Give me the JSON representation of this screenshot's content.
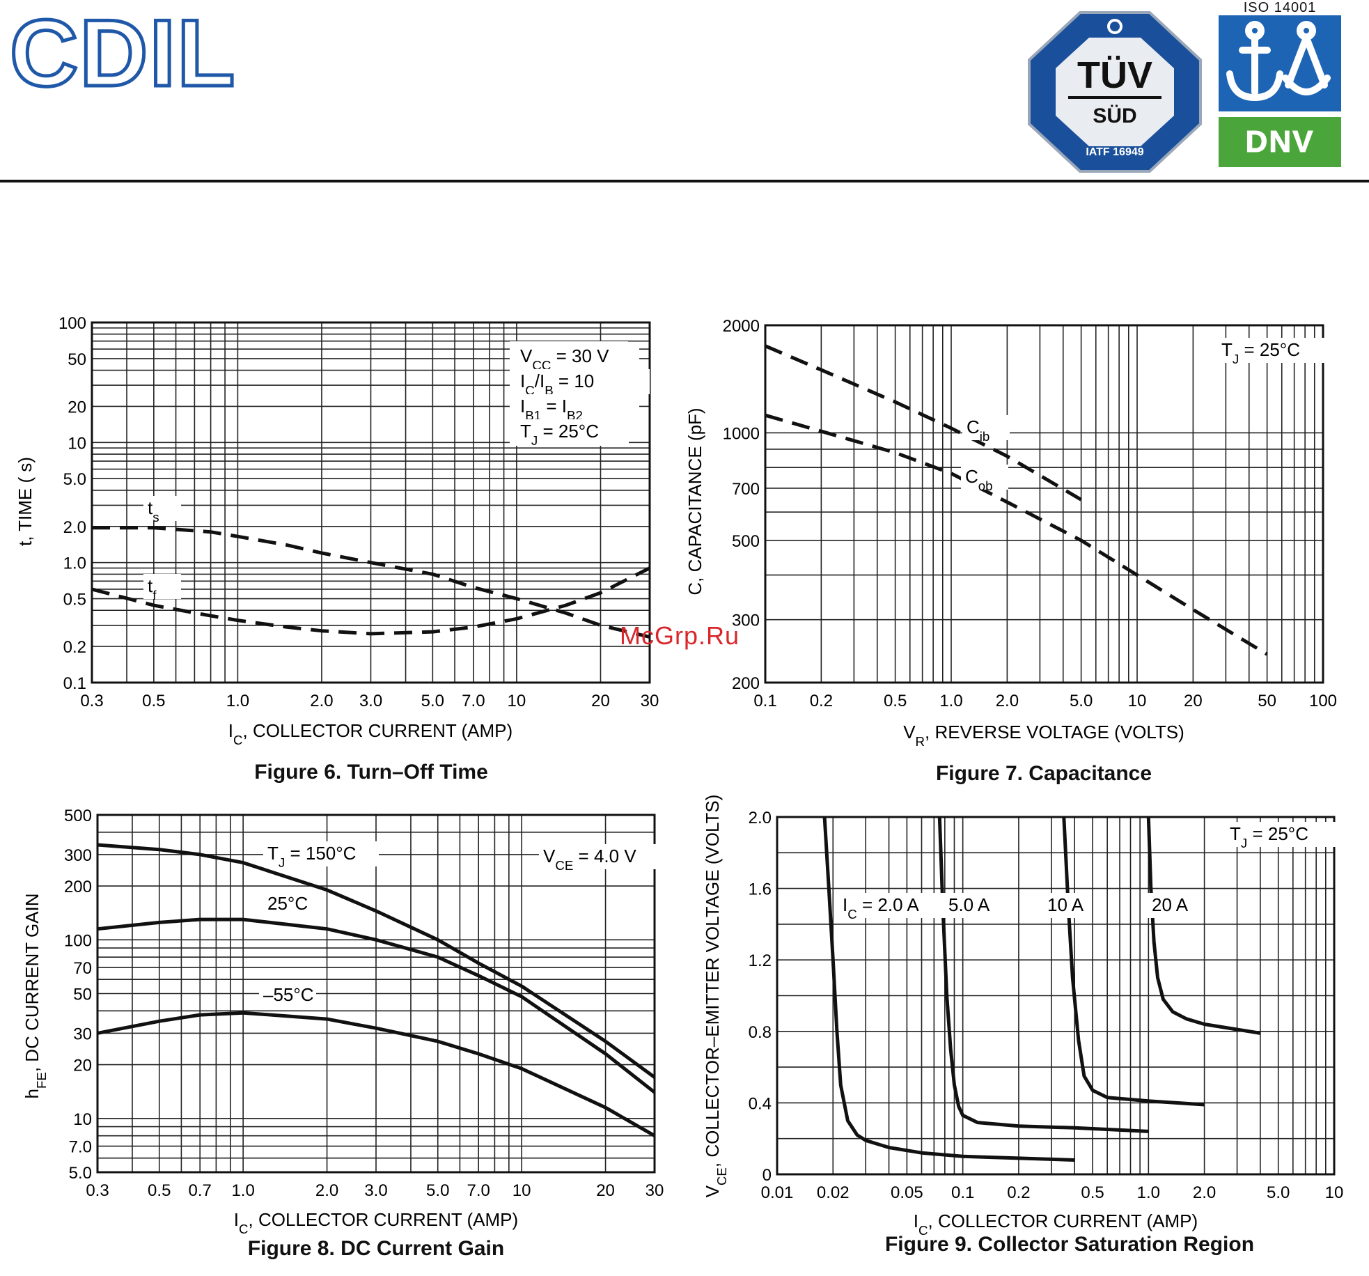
{
  "header": {
    "logo_text": "CDIL",
    "tuv_brand": "TÜV",
    "tuv_sub": "SÜD",
    "tuv_cert": "IATF 16949",
    "iso_title": "ISO 14001",
    "dnv_text": "DNV"
  },
  "watermark": "McGrp.Ru",
  "colors": {
    "logo_blue": "#1f58a8",
    "tuv_blue": "#1a4f9c",
    "iso_blue": "#1d64b5",
    "dnv_green": "#4aa63a",
    "watermark_red": "#d8262b"
  },
  "chart_data": [
    {
      "type": "line",
      "caption": "Figure 6. Turn–Off Time",
      "xlabel": "I_C, COLLECTOR CURRENT (AMP)",
      "ylabel": "t, TIME (  s)",
      "xscale": "log",
      "yscale": "log",
      "xlim": [
        0.3,
        30
      ],
      "ylim": [
        0.1,
        100
      ],
      "xticks": [
        0.3,
        0.5,
        1.0,
        2.0,
        3.0,
        5.0,
        7.0,
        10,
        20,
        30
      ],
      "xtick_labels": [
        "0.3",
        "0.5",
        "1.0",
        "2.0",
        "3.0",
        "5.0",
        "7.0",
        "10",
        "20",
        "30"
      ],
      "yticks": [
        0.1,
        0.2,
        0.5,
        1.0,
        2.0,
        5.0,
        10,
        20,
        50,
        100
      ],
      "ytick_labels": [
        "0.1",
        "0.2",
        "0.5",
        "1.0",
        "2.0",
        "5.0",
        "10",
        "20",
        "50",
        "100"
      ],
      "grid": true,
      "legend": "top-right",
      "annotation": [
        "V_CC = 30 V",
        "I_C/I_B = 10",
        "I_B1 = I_B2",
        "T_J = 25°C"
      ],
      "series": [
        {
          "name": "t_s",
          "style": "dashed-solid-dashed",
          "x": [
            0.3,
            0.5,
            0.8,
            1.0,
            1.5,
            2.0,
            3.0,
            5.0,
            7.0,
            10,
            15,
            20,
            30
          ],
          "y": [
            1.95,
            1.95,
            1.8,
            1.65,
            1.4,
            1.2,
            1.0,
            0.8,
            0.62,
            0.5,
            0.38,
            0.3,
            0.24
          ]
        },
        {
          "name": "t_f",
          "style": "dashed-solid-dashed",
          "x": [
            0.3,
            0.5,
            0.8,
            1.0,
            1.5,
            2.0,
            3.0,
            5.0,
            7.0,
            10,
            15,
            20,
            30
          ],
          "y": [
            0.6,
            0.44,
            0.36,
            0.33,
            0.29,
            0.27,
            0.255,
            0.265,
            0.29,
            0.34,
            0.44,
            0.56,
            0.9
          ]
        }
      ]
    },
    {
      "type": "line",
      "caption": "Figure 7. Capacitance",
      "xlabel": "V_R, REVERSE VOLTAGE (VOLTS)",
      "ylabel": "C, CAPACITANCE (pF)",
      "xscale": "log",
      "yscale": "log",
      "xlim": [
        0.1,
        100
      ],
      "ylim": [
        200,
        2000
      ],
      "xticks": [
        0.1,
        0.2,
        0.5,
        1.0,
        2.0,
        5.0,
        10,
        20,
        50,
        100
      ],
      "xtick_labels": [
        "0.1",
        "0.2",
        "0.5",
        "1.0",
        "2.0",
        "5.0",
        "10",
        "20",
        "50",
        "100"
      ],
      "yticks": [
        200,
        300,
        500,
        700,
        1000,
        2000
      ],
      "ytick_labels": [
        "200",
        "300",
        "500",
        "700",
        "1000",
        "2000"
      ],
      "grid": true,
      "annotation": [
        "T_J = 25°C"
      ],
      "series": [
        {
          "name": "C_ib",
          "style": "dashed",
          "x": [
            0.1,
            0.2,
            0.5,
            1.0,
            2.0,
            5.0
          ],
          "y": [
            1750,
            1500,
            1220,
            1030,
            860,
            650
          ]
        },
        {
          "name": "C_ob",
          "style": "dashed",
          "x": [
            0.1,
            0.2,
            0.5,
            1.0,
            2.0,
            5.0,
            10,
            20,
            50
          ],
          "y": [
            1120,
            1010,
            880,
            770,
            640,
            500,
            400,
            320,
            240
          ]
        }
      ]
    },
    {
      "type": "line",
      "caption": "Figure 8. DC Current Gain",
      "xlabel": "I_C, COLLECTOR CURRENT (AMP)",
      "ylabel": "h_FE, DC CURRENT GAIN",
      "xscale": "log",
      "yscale": "log",
      "xlim": [
        0.3,
        30
      ],
      "ylim": [
        5,
        500
      ],
      "xticks": [
        0.3,
        0.5,
        0.7,
        1.0,
        2.0,
        3.0,
        5.0,
        7.0,
        10,
        20,
        30
      ],
      "xtick_labels": [
        "0.3",
        "0.5",
        "0.7",
        "1.0",
        "2.0",
        "3.0",
        "5.0",
        "7.0",
        "10",
        "20",
        "30"
      ],
      "yticks": [
        5,
        7,
        10,
        20,
        30,
        50,
        70,
        100,
        200,
        300,
        500
      ],
      "ytick_labels": [
        "5.0",
        "7.0",
        "10",
        "20",
        "30",
        "50",
        "70",
        "100",
        "200",
        "300",
        "500"
      ],
      "grid": true,
      "annotation": [
        "V_CE = 4.0 V"
      ],
      "series": [
        {
          "name": "T_J = 150°C",
          "x": [
            0.3,
            0.5,
            0.7,
            1.0,
            2.0,
            3.0,
            5.0,
            7.0,
            10,
            20,
            30
          ],
          "y": [
            340,
            320,
            300,
            270,
            190,
            145,
            100,
            74,
            55,
            27,
            17
          ]
        },
        {
          "name": "25°C",
          "x": [
            0.3,
            0.5,
            0.7,
            1.0,
            2.0,
            3.0,
            5.0,
            7.0,
            10,
            20,
            30
          ],
          "y": [
            115,
            125,
            130,
            130,
            115,
            100,
            80,
            63,
            48,
            23,
            14
          ]
        },
        {
          "name": "–55°C",
          "x": [
            0.3,
            0.5,
            0.7,
            1.0,
            2.0,
            3.0,
            5.0,
            7.0,
            10,
            20,
            30
          ],
          "y": [
            30,
            35,
            38,
            39,
            36,
            32,
            27,
            23,
            19,
            11.5,
            8
          ]
        }
      ]
    },
    {
      "type": "line",
      "caption": "Figure 9. Collector Saturation Region",
      "xlabel": "I_C, COLLECTOR CURRENT (AMP)",
      "ylabel": "V_CE, COLLECTOR–EMITTER VOLTAGE (VOLTS)",
      "xscale": "log",
      "yscale": "linear",
      "xlim": [
        0.01,
        10
      ],
      "ylim": [
        0,
        2.0
      ],
      "xticks": [
        0.01,
        0.02,
        0.05,
        0.1,
        0.2,
        0.5,
        1.0,
        2.0,
        5.0,
        10
      ],
      "xtick_labels": [
        "0.01",
        "0.02",
        "0.05",
        "0.1",
        "0.2",
        "0.5",
        "1.0",
        "2.0",
        "5.0",
        "10"
      ],
      "yticks": [
        0,
        0.4,
        0.8,
        1.2,
        1.6,
        2.0
      ],
      "ytick_labels": [
        "0",
        "0.4",
        "0.8",
        "1.2",
        "1.6",
        "2.0"
      ],
      "grid": true,
      "annotation": [
        "T_J = 25°C"
      ],
      "series": [
        {
          "name": "I_C = 2.0 A",
          "x": [
            0.018,
            0.019,
            0.02,
            0.021,
            0.022,
            0.024,
            0.027,
            0.03,
            0.04,
            0.06,
            0.1,
            0.2,
            0.4
          ],
          "y": [
            2.0,
            1.6,
            1.2,
            0.8,
            0.5,
            0.3,
            0.22,
            0.19,
            0.15,
            0.12,
            0.1,
            0.09,
            0.08
          ]
        },
        {
          "name": "5.0 A",
          "x": [
            0.075,
            0.078,
            0.082,
            0.086,
            0.09,
            0.095,
            0.1,
            0.12,
            0.2,
            0.4,
            1.0
          ],
          "y": [
            2.0,
            1.5,
            1.0,
            0.7,
            0.5,
            0.38,
            0.33,
            0.29,
            0.27,
            0.26,
            0.24
          ]
        },
        {
          "name": "10 A",
          "x": [
            0.35,
            0.37,
            0.39,
            0.42,
            0.45,
            0.5,
            0.6,
            1.0,
            2.0
          ],
          "y": [
            2.0,
            1.5,
            1.1,
            0.75,
            0.55,
            0.47,
            0.43,
            0.41,
            0.39
          ]
        },
        {
          "name": "20 A",
          "x": [
            1.0,
            1.03,
            1.07,
            1.12,
            1.2,
            1.35,
            1.6,
            2.0,
            4.0
          ],
          "y": [
            2.0,
            1.6,
            1.3,
            1.1,
            0.98,
            0.91,
            0.87,
            0.84,
            0.79
          ]
        }
      ],
      "series_labels": [
        "I_C = 2.0 A",
        "5.0 A",
        "10 A",
        "20 A"
      ]
    }
  ]
}
